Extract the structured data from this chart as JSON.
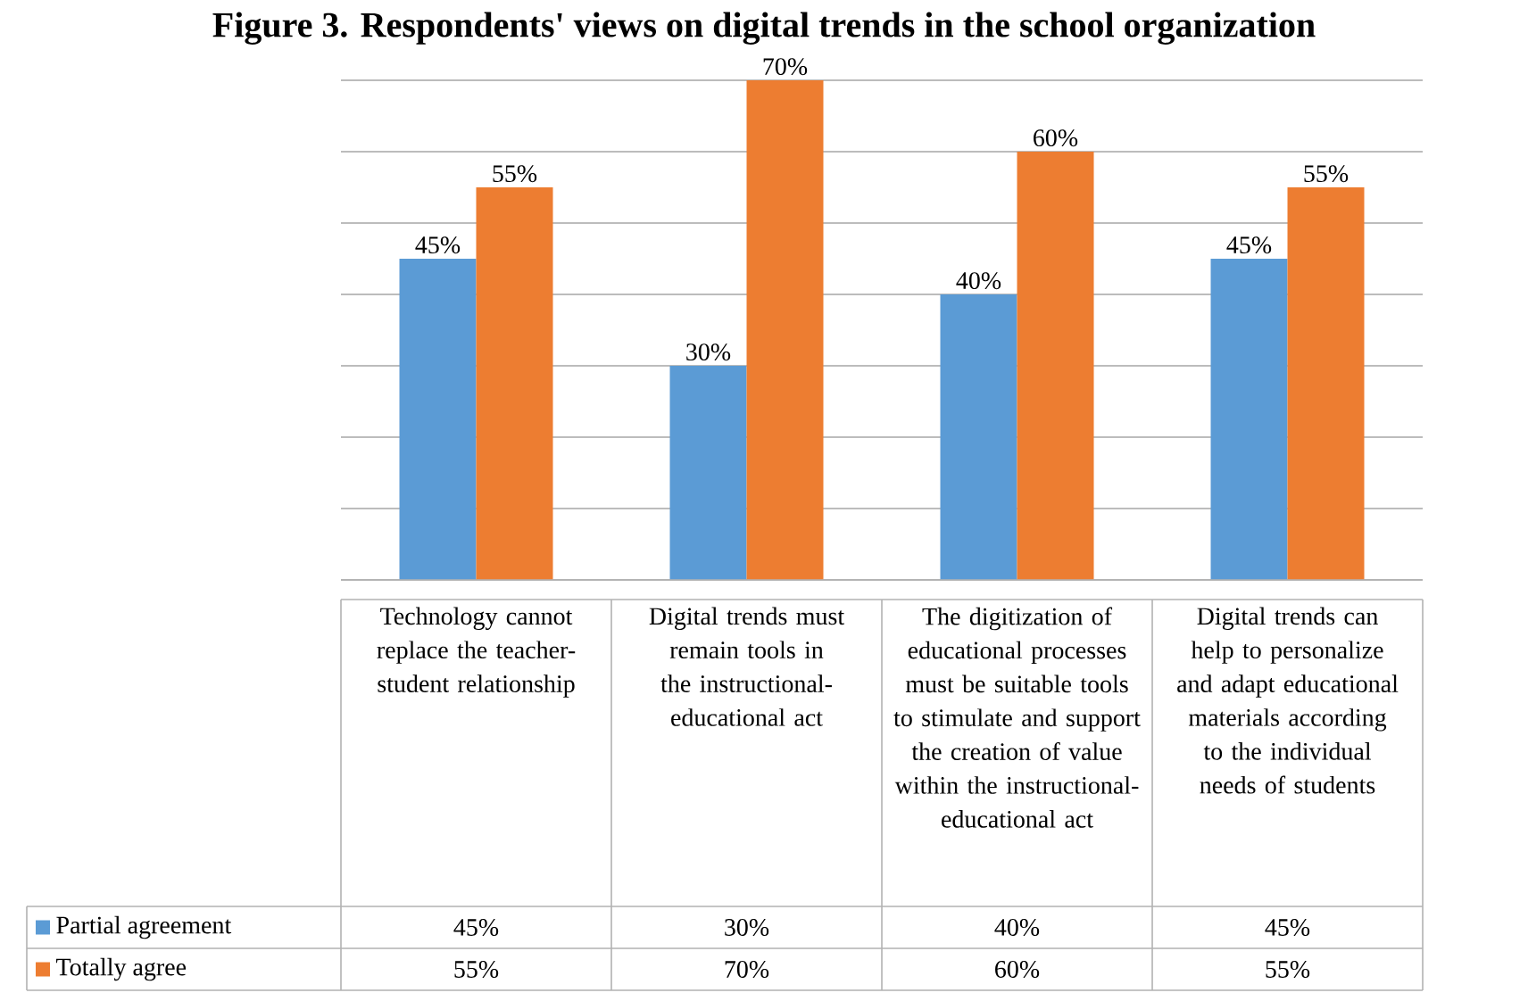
{
  "chart_data": {
    "type": "bar",
    "title": "Figure 3. Respondents' views on digital trends in the school organization",
    "categories": [
      "Technology cannot replace the teacher-student relationship",
      "Digital trends must remain tools in the instructional-educational act",
      "The digitization of educational processes must be suitable tools to stimulate and support the creation of value within the instructional-educational act",
      "Digital trends can help to personalize and adapt educational materials according to the individual needs of students"
    ],
    "series": [
      {
        "name": "Partial agreement",
        "color": "#5b9bd5",
        "values": [
          45,
          30,
          40,
          45
        ],
        "value_labels": [
          "45%",
          "30%",
          "40%",
          "45%"
        ]
      },
      {
        "name": "Totally agree",
        "color": "#ed7d31",
        "values": [
          55,
          70,
          60,
          55
        ],
        "value_labels": [
          "55%",
          "70%",
          "60%",
          "55%"
        ]
      }
    ],
    "tick_labels": "x",
    "grid": "y",
    "legend": "bottom"
  }
}
